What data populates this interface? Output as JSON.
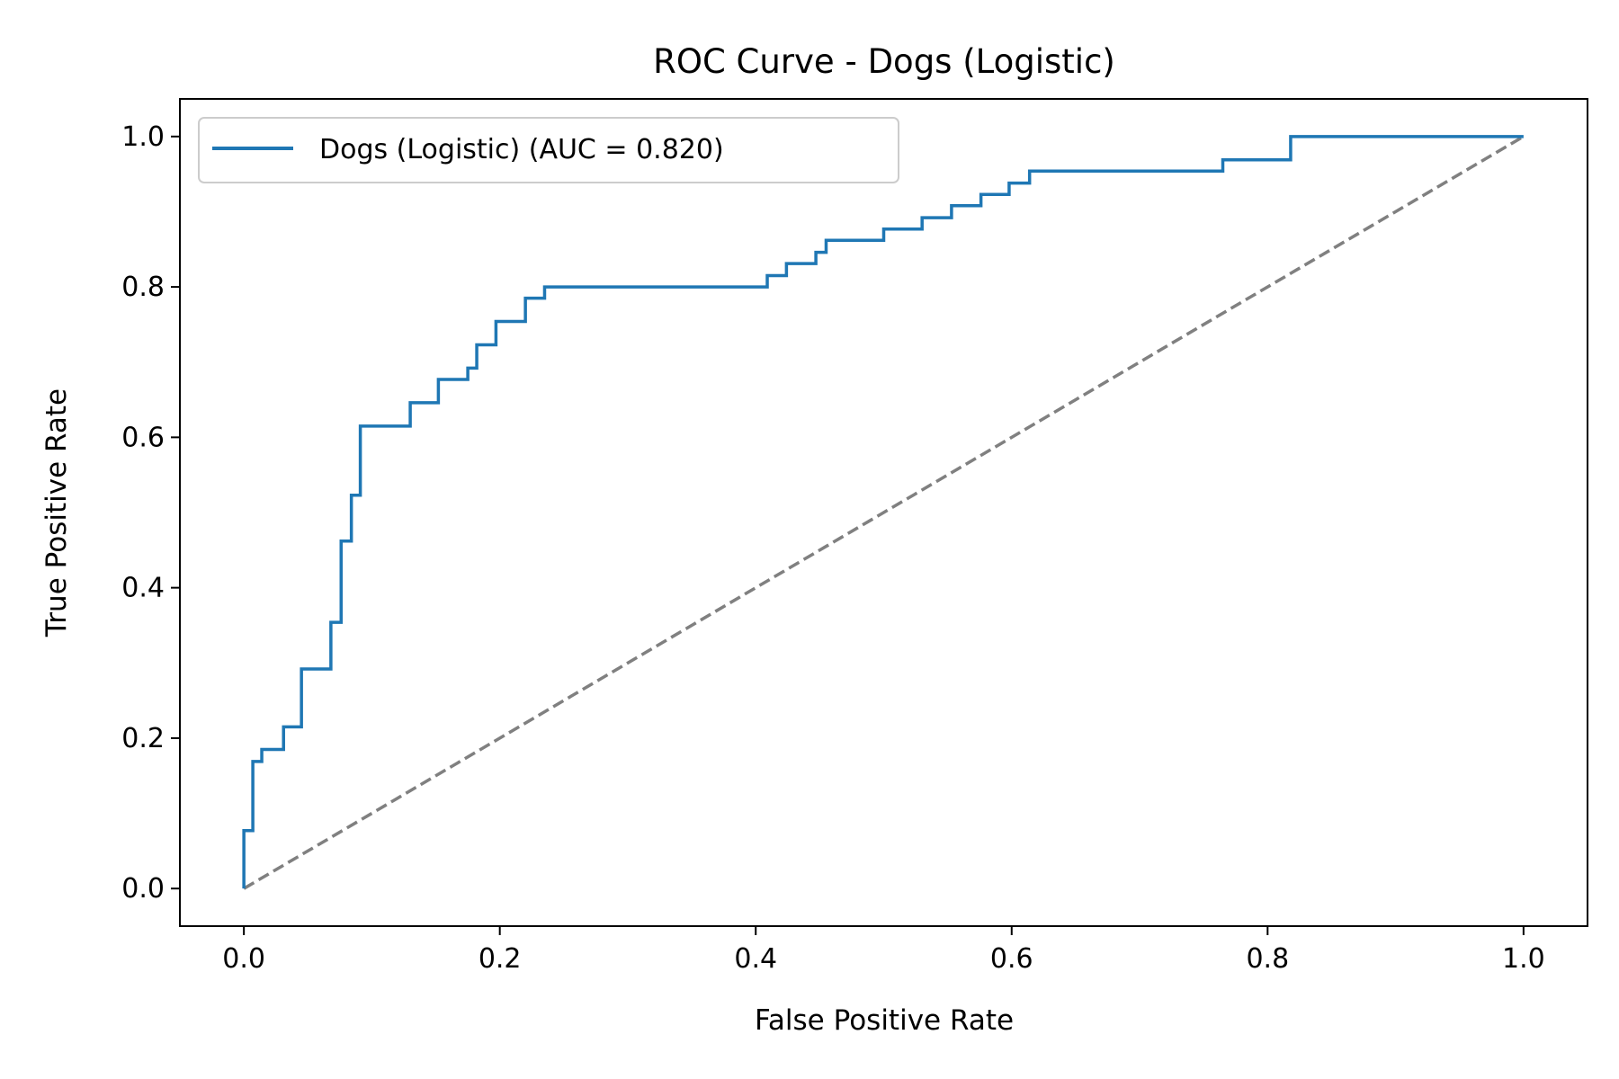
{
  "chart_data": {
    "type": "line",
    "title": "ROC Curve - Dogs (Logistic)",
    "xlabel": "False Positive Rate",
    "ylabel": "True Positive Rate",
    "xlim": [
      -0.05,
      1.05
    ],
    "ylim": [
      -0.05,
      1.05
    ],
    "grid": false,
    "legend_placement": "top-left",
    "x_ticks": [
      "0.0",
      "0.2",
      "0.4",
      "0.6",
      "0.8",
      "1.0"
    ],
    "y_ticks": [
      "0.0",
      "0.2",
      "0.4",
      "0.6",
      "0.8",
      "1.0"
    ],
    "series": [
      {
        "name": "Dogs (Logistic) (AUC = 0.820)",
        "color": "#1f77b4",
        "style": "step",
        "x": [
          0.0,
          0.0,
          0.007,
          0.007,
          0.014,
          0.014,
          0.031,
          0.031,
          0.045,
          0.045,
          0.068,
          0.068,
          0.076,
          0.076,
          0.084,
          0.084,
          0.091,
          0.091,
          0.13,
          0.13,
          0.152,
          0.152,
          0.175,
          0.175,
          0.182,
          0.182,
          0.197,
          0.197,
          0.22,
          0.22,
          0.235,
          0.235,
          0.409,
          0.409,
          0.424,
          0.424,
          0.447,
          0.447,
          0.455,
          0.455,
          0.5,
          0.5,
          0.53,
          0.53,
          0.553,
          0.553,
          0.576,
          0.576,
          0.598,
          0.598,
          0.614,
          0.614,
          0.765,
          0.765,
          0.818,
          0.818,
          1.0
        ],
        "y": [
          0.0,
          0.077,
          0.077,
          0.169,
          0.169,
          0.185,
          0.185,
          0.215,
          0.215,
          0.292,
          0.292,
          0.354,
          0.354,
          0.462,
          0.462,
          0.523,
          0.523,
          0.615,
          0.615,
          0.646,
          0.646,
          0.677,
          0.677,
          0.692,
          0.692,
          0.723,
          0.723,
          0.754,
          0.754,
          0.785,
          0.785,
          0.8,
          0.8,
          0.815,
          0.815,
          0.831,
          0.831,
          0.846,
          0.846,
          0.862,
          0.862,
          0.877,
          0.877,
          0.892,
          0.892,
          0.908,
          0.908,
          0.923,
          0.923,
          0.938,
          0.938,
          0.954,
          0.954,
          0.969,
          0.969,
          1.0,
          1.0
        ]
      },
      {
        "name": "",
        "color": "#808080",
        "style": "dashed",
        "x": [
          0,
          1
        ],
        "y": [
          0,
          1
        ]
      }
    ]
  }
}
